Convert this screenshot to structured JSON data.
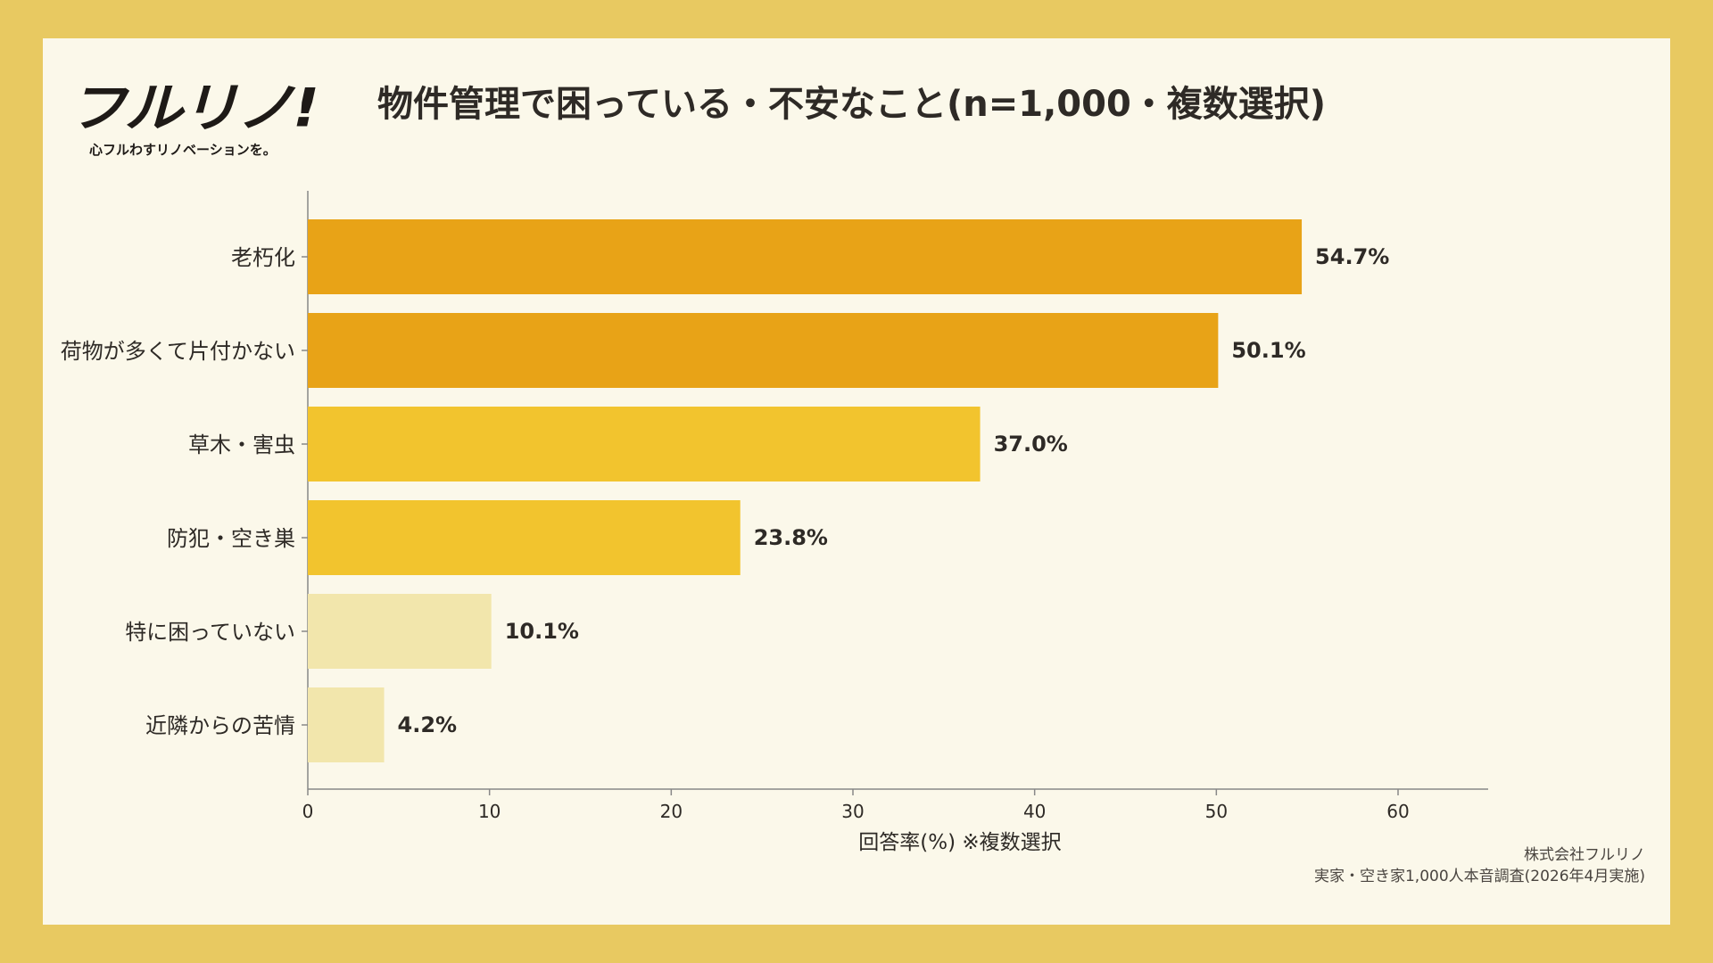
{
  "brand": {
    "logo_text": "フルリノ!",
    "tagline": "心フルわすリノベーションを。"
  },
  "title": "物件管理で困っている・不安なこと(n=1,000・複数選択)",
  "colors": {
    "background_outer": "#E8C961",
    "card": "#FBF8EA",
    "bar_top": "#E8A317",
    "bar_mid": "#F2C42E",
    "bar_low": "#F2E6AC",
    "text": "#2E2A26",
    "axis": "#888888"
  },
  "chart_data": {
    "type": "bar",
    "orientation": "horizontal",
    "categories": [
      "老朽化",
      "荷物が多くて片付かない",
      "草木・害虫",
      "防犯・空き巣",
      "特に困っていない",
      "近隣からの苦情"
    ],
    "values": [
      54.7,
      50.1,
      37.0,
      23.8,
      10.1,
      4.2
    ],
    "value_labels": [
      "54.7%",
      "50.1%",
      "37.0%",
      "23.8%",
      "10.1%",
      "4.2%"
    ],
    "bar_colors": [
      "#E8A317",
      "#E8A317",
      "#F2C42E",
      "#F2C42E",
      "#F2E6AC",
      "#F2E6AC"
    ],
    "xlabel": "回答率(%) ※複数選択",
    "xlim": [
      0,
      65
    ],
    "xticks": [
      0,
      10,
      20,
      30,
      40,
      50,
      60
    ],
    "grid": false,
    "legend": "none"
  },
  "credit": {
    "company": "株式会社フルリノ",
    "survey": "実家・空き家1,000人本音調査(2026年4月実施)"
  }
}
